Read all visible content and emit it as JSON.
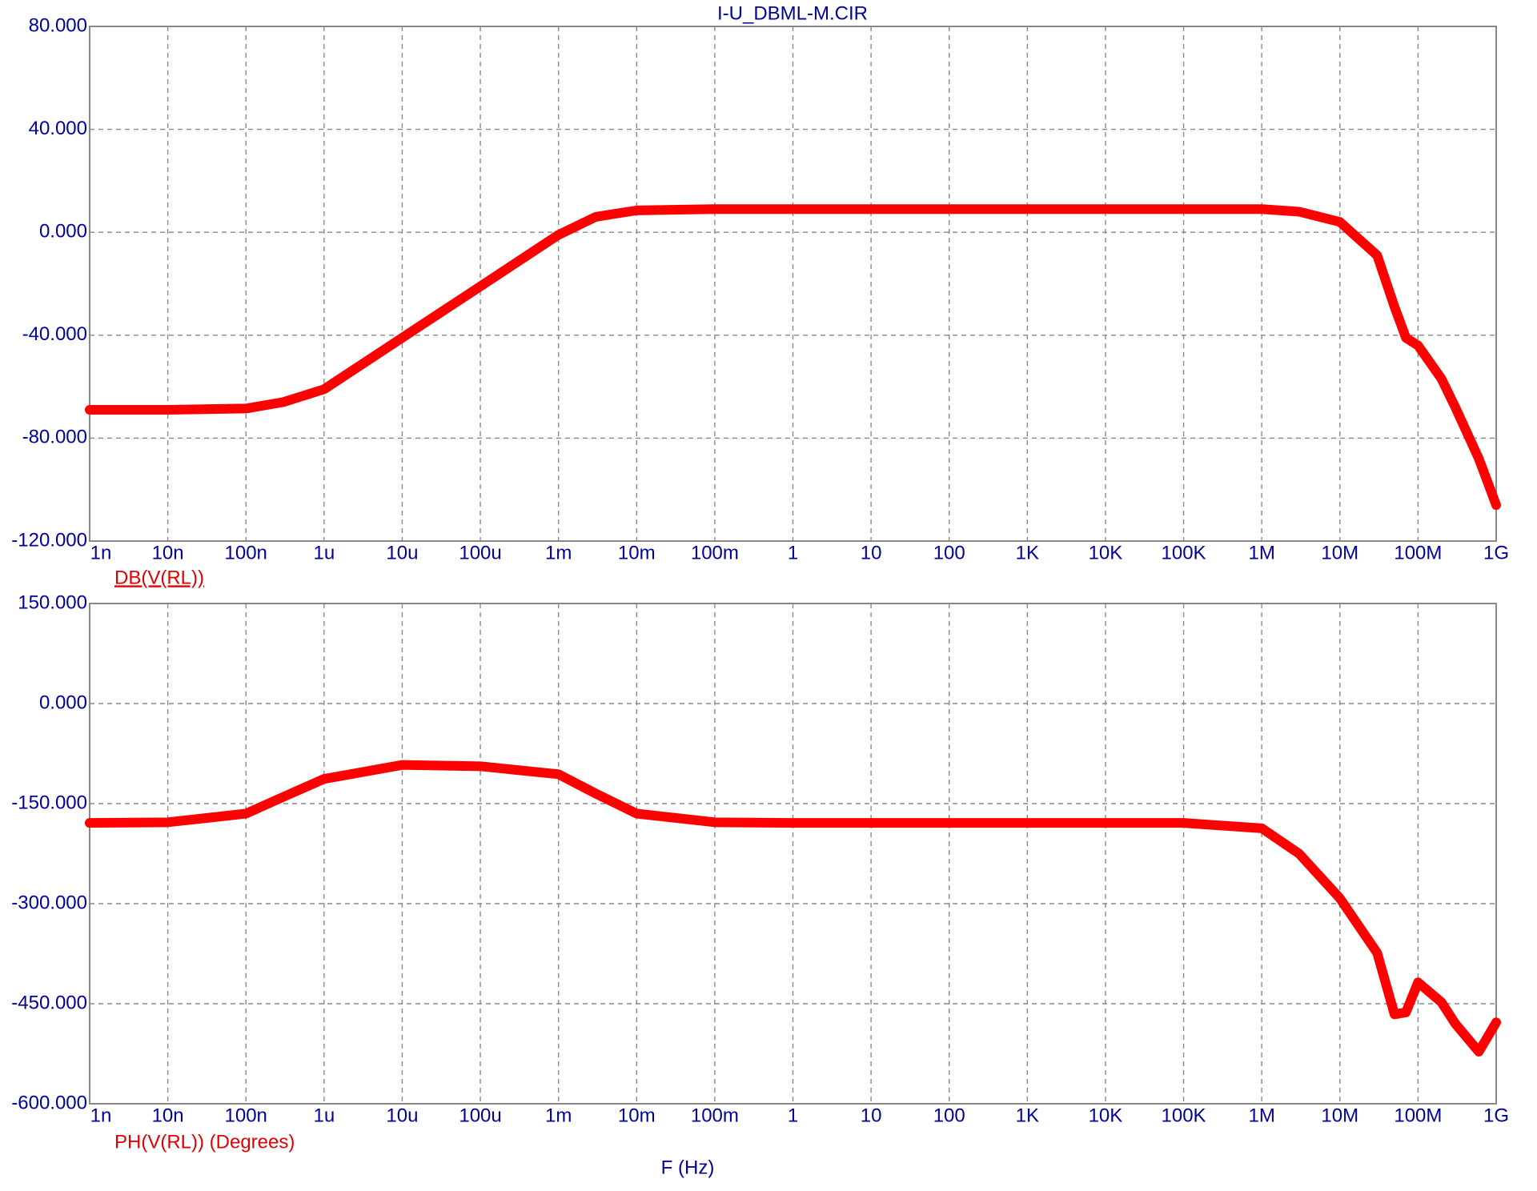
{
  "chart_data": [
    {
      "type": "line",
      "title": "I-U_DBML-M.CIR",
      "xscale": "log",
      "grid": true,
      "x": [
        1e-09,
        1e-08,
        1e-07,
        3e-07,
        1e-06,
        1e-05,
        0.0001,
        0.001,
        0.003,
        0.01,
        0.1,
        1,
        10,
        100,
        1000,
        10000,
        100000,
        1000000,
        3000000,
        10000000,
        30000000,
        50000000,
        70000000,
        100000000,
        200000000,
        300000000,
        600000000,
        1000000000
      ],
      "series": [
        {
          "name": "DB(V(RL))",
          "color": "#ff0000",
          "values": [
            -69,
            -69,
            -68.5,
            -66,
            -61,
            -41,
            -21,
            -1,
            6,
            8.5,
            9,
            9,
            9,
            9,
            9,
            9,
            9,
            9,
            8,
            4,
            -9,
            -29,
            -41,
            -44,
            -57,
            -68,
            -88,
            -106
          ]
        }
      ],
      "xlim": [
        1e-09,
        1000000000
      ],
      "xticks": [
        {
          "value": 1e-09,
          "label": "1n"
        },
        {
          "value": 1e-08,
          "label": "10n"
        },
        {
          "value": 1e-07,
          "label": "100n"
        },
        {
          "value": 1e-06,
          "label": "1u"
        },
        {
          "value": 1e-05,
          "label": "10u"
        },
        {
          "value": 0.0001,
          "label": "100u"
        },
        {
          "value": 0.001,
          "label": "1m"
        },
        {
          "value": 0.01,
          "label": "10m"
        },
        {
          "value": 0.1,
          "label": "100m"
        },
        1,
        10,
        100,
        {
          "value": 1000,
          "label": "1K"
        },
        {
          "value": 10000,
          "label": "10K"
        },
        {
          "value": 100000,
          "label": "100K"
        },
        {
          "value": 1000000,
          "label": "1M"
        },
        {
          "value": 10000000,
          "label": "10M"
        },
        {
          "value": 100000000,
          "label": "100M"
        },
        {
          "value": 1000000000,
          "label": "1G"
        }
      ],
      "ylim": [
        -120,
        80
      ],
      "yticks": [
        {
          "value": -120,
          "label": "-120.000"
        },
        {
          "value": -80,
          "label": "-80.000"
        },
        {
          "value": -40,
          "label": "-40.000"
        },
        {
          "value": 0,
          "label": "0.000"
        },
        {
          "value": 40,
          "label": "40.000"
        },
        {
          "value": 80,
          "label": "80.000"
        }
      ]
    },
    {
      "type": "line",
      "x_label": "F (Hz)",
      "xscale": "log",
      "grid": true,
      "x": [
        1e-09,
        1e-08,
        1e-07,
        3e-07,
        1e-06,
        1e-05,
        0.0001,
        0.001,
        0.003,
        0.01,
        0.1,
        1,
        10,
        100,
        1000,
        10000,
        100000,
        1000000,
        3000000,
        10000000,
        30000000,
        50000000,
        70000000,
        100000000,
        200000000,
        300000000,
        600000000,
        1000000000
      ],
      "series": [
        {
          "name": "PH(V(RL)) (Degrees)",
          "color": "#ff0000",
          "values": [
            -179,
            -178,
            -165,
            -140,
            -113,
            -92,
            -94,
            -106,
            -135,
            -165,
            -178,
            -179,
            -179,
            -179,
            -179,
            -179,
            -179,
            -187,
            -225,
            -292,
            -374,
            -466,
            -463,
            -418,
            -448,
            -480,
            -522,
            -478
          ]
        }
      ],
      "xlim": [
        1e-09,
        1000000000
      ],
      "xticks": [
        {
          "value": 1e-09,
          "label": "1n"
        },
        {
          "value": 1e-08,
          "label": "10n"
        },
        {
          "value": 1e-07,
          "label": "100n"
        },
        {
          "value": 1e-06,
          "label": "1u"
        },
        {
          "value": 1e-05,
          "label": "10u"
        },
        {
          "value": 0.0001,
          "label": "100u"
        },
        {
          "value": 0.001,
          "label": "1m"
        },
        {
          "value": 0.01,
          "label": "10m"
        },
        {
          "value": 0.1,
          "label": "100m"
        },
        1,
        10,
        100,
        {
          "value": 1000,
          "label": "1K"
        },
        {
          "value": 10000,
          "label": "10K"
        },
        {
          "value": 100000,
          "label": "100K"
        },
        {
          "value": 1000000,
          "label": "1M"
        },
        {
          "value": 10000000,
          "label": "10M"
        },
        {
          "value": 100000000,
          "label": "100M"
        },
        {
          "value": 1000000000,
          "label": "1G"
        }
      ],
      "ylim": [
        -600,
        150
      ],
      "yticks": [
        {
          "value": -600,
          "label": "-600.000"
        },
        {
          "value": -450,
          "label": "-450.000"
        },
        {
          "value": -300,
          "label": "-300.000"
        },
        {
          "value": -150,
          "label": "-150.000"
        },
        {
          "value": 0,
          "label": "0.000"
        },
        {
          "value": 150,
          "label": "150.000"
        }
      ]
    }
  ]
}
